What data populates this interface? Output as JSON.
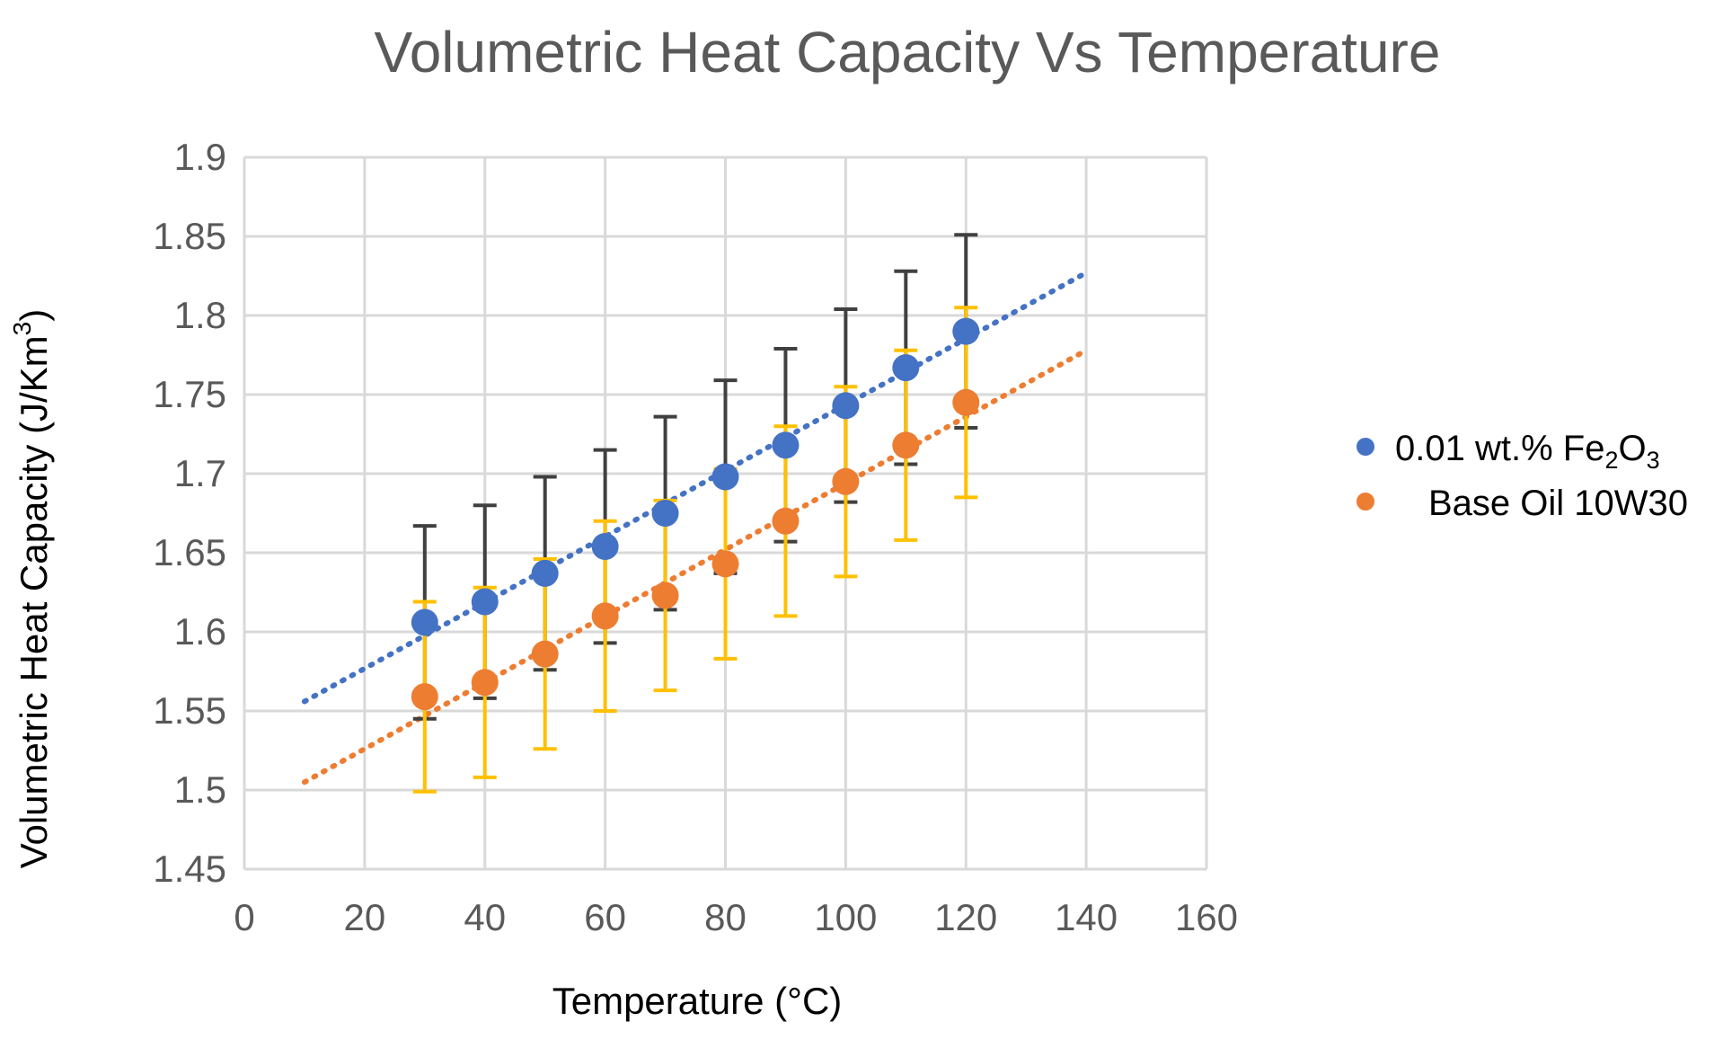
{
  "chart_data": {
    "type": "scatter",
    "title": "Volumetric Heat Capacity Vs Temperature",
    "xlabel": "Temperature (°C)",
    "ylabel": {
      "text": "Volumetric Heat Capacity (J/Km",
      "sup": "3",
      "close": ")"
    },
    "xlim": [
      0,
      160
    ],
    "ylim": [
      1.45,
      1.9
    ],
    "x_ticks": [
      "0",
      "20",
      "40",
      "60",
      "80",
      "100",
      "120",
      "140",
      "160"
    ],
    "y_ticks": [
      "1.45",
      "1.5",
      "1.55",
      "1.6",
      "1.65",
      "1.7",
      "1.75",
      "1.8",
      "1.85",
      "1.9"
    ],
    "grid": true,
    "legend_position": "right",
    "series": [
      {
        "name": {
          "prefix": "0.01 wt.% Fe",
          "sub1": "2",
          "mid": "O",
          "sub2": "3"
        },
        "color": "#4472c4",
        "error_bar_color": "#404040",
        "x": [
          30,
          40,
          50,
          60,
          70,
          80,
          90,
          100,
          110,
          120
        ],
        "y": [
          1.606,
          1.619,
          1.637,
          1.654,
          1.675,
          1.698,
          1.718,
          1.743,
          1.767,
          1.79
        ],
        "error": [
          0.061,
          0.061,
          0.061,
          0.061,
          0.061,
          0.061,
          0.061,
          0.061,
          0.061,
          0.061
        ],
        "trendline": {
          "type": "linear",
          "x": [
            10,
            140
          ],
          "y": [
            1.556,
            1.827
          ]
        }
      },
      {
        "name": "Base Oil 10W30",
        "color": "#ed7d31",
        "error_bar_color": "#ffc000",
        "x": [
          30,
          40,
          50,
          60,
          70,
          80,
          90,
          100,
          110,
          120
        ],
        "y": [
          1.559,
          1.568,
          1.586,
          1.61,
          1.623,
          1.643,
          1.67,
          1.695,
          1.718,
          1.745
        ],
        "error": [
          0.06,
          0.06,
          0.06,
          0.06,
          0.06,
          0.06,
          0.06,
          0.06,
          0.06,
          0.06
        ],
        "trendline": {
          "type": "linear",
          "x": [
            10,
            140
          ],
          "y": [
            1.505,
            1.778
          ]
        }
      }
    ]
  }
}
